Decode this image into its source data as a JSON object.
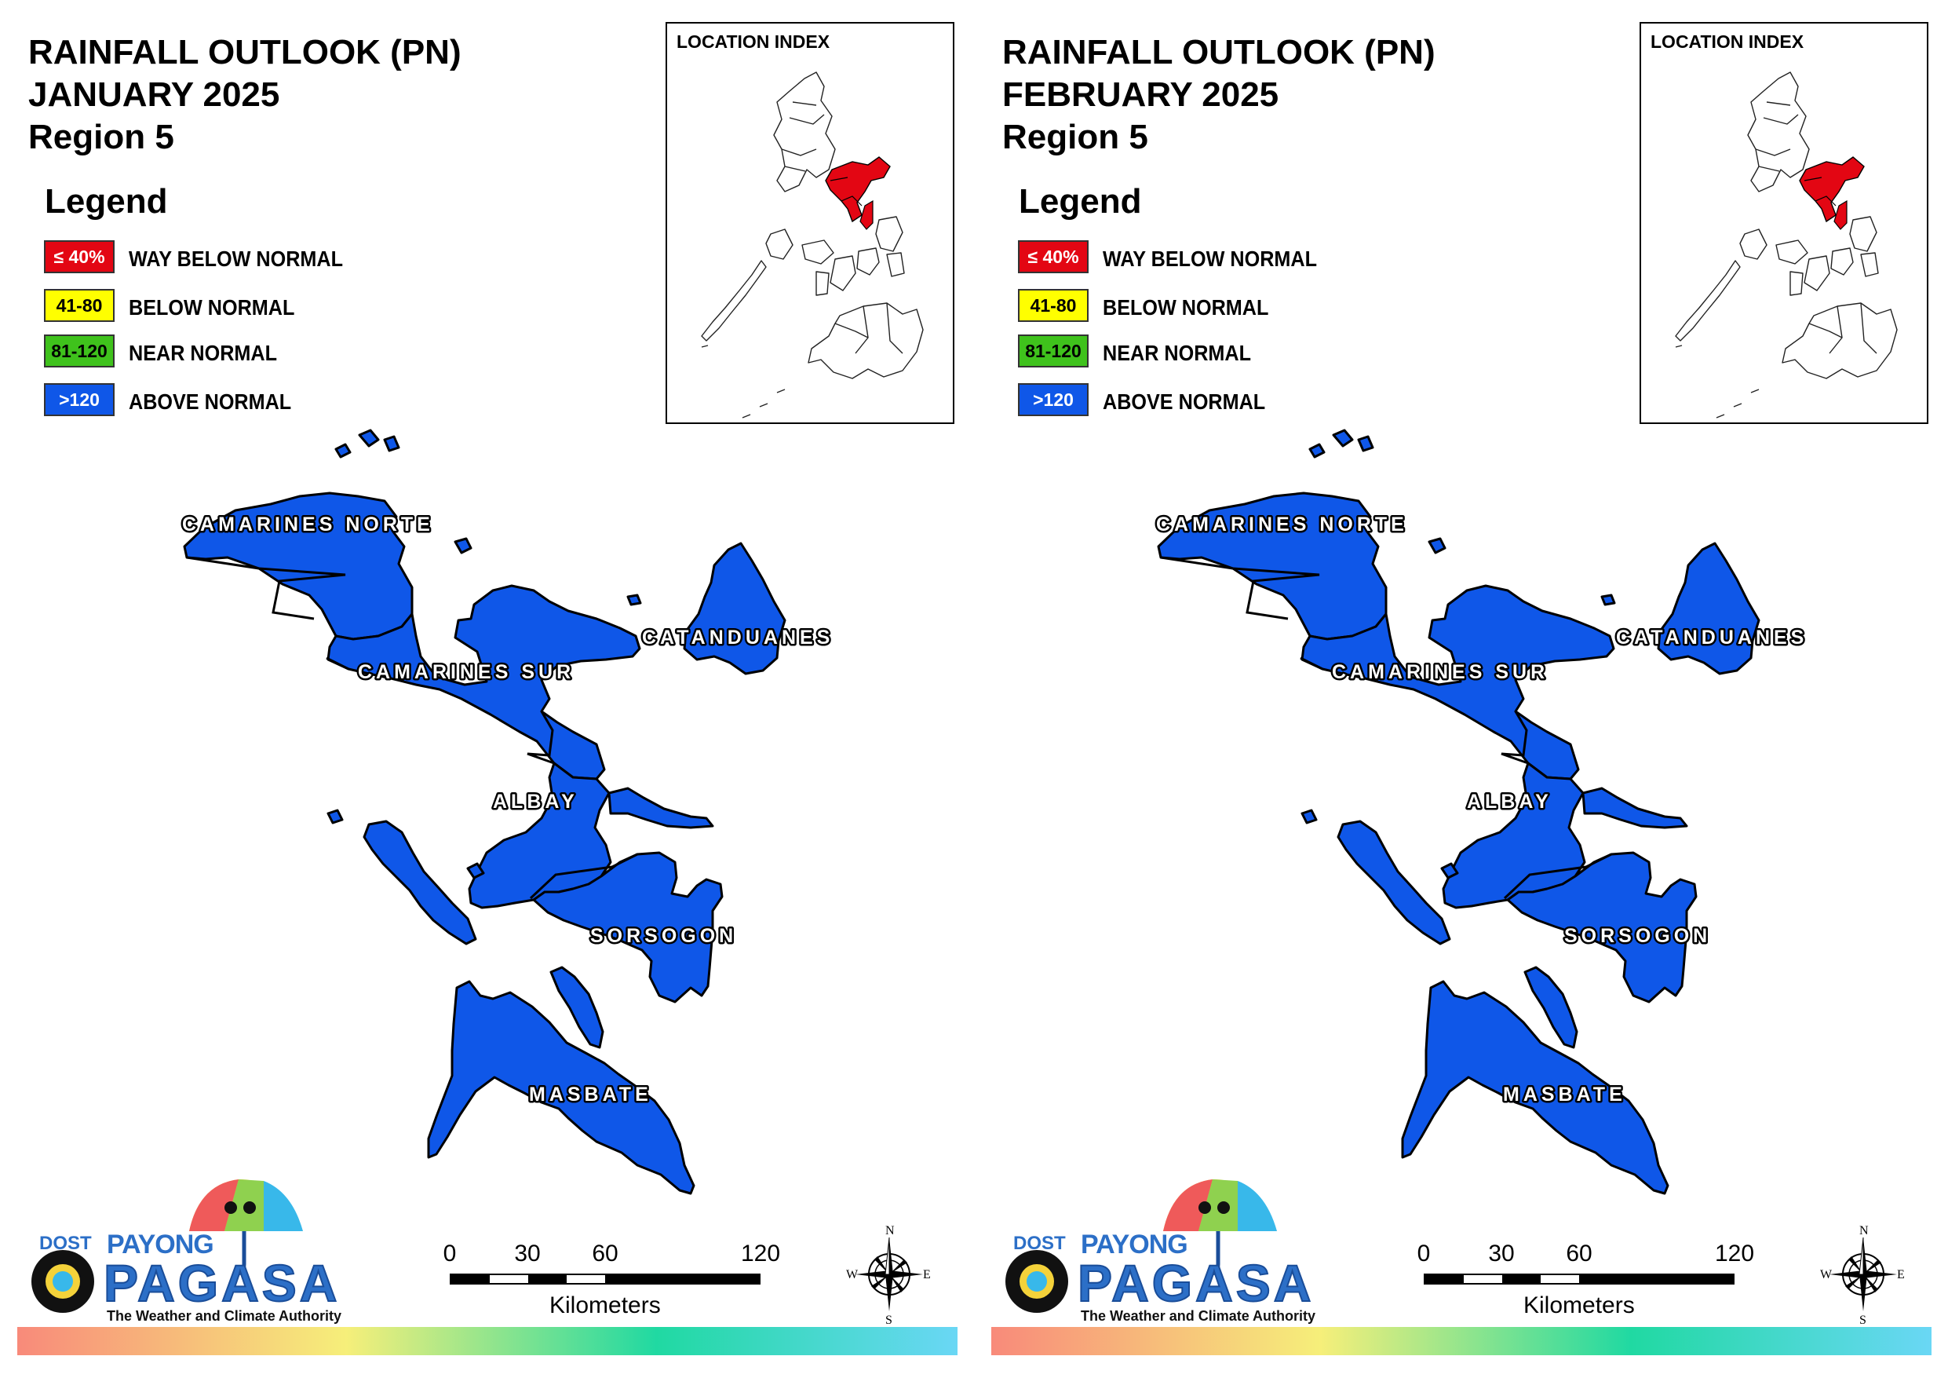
{
  "panels": [
    {
      "title_line1": "RAINFALL OUTLOOK (PN)",
      "title_line2": "JANUARY 2025",
      "title_line3": "Region 5"
    },
    {
      "title_line1": "RAINFALL OUTLOOK (PN)",
      "title_line2": "FEBRUARY 2025",
      "title_line3": "Region 5"
    }
  ],
  "legend": {
    "title": "Legend",
    "items": [
      {
        "range": "≤ 40%",
        "label": "WAY BELOW NORMAL",
        "color": "#e30613",
        "text_color": "#ffffff"
      },
      {
        "range": "41-80",
        "label": "BELOW NORMAL",
        "color": "#ffff00",
        "text_color": "#000000"
      },
      {
        "range": "81-120",
        "label": "NEAR NORMAL",
        "color": "#3fc21c",
        "text_color": "#000000"
      },
      {
        "range": ">120",
        "label": "ABOVE NORMAL",
        "color": "#0f57e8",
        "text_color": "#ffffff"
      }
    ]
  },
  "inset": {
    "title": "LOCATION INDEX",
    "highlight_color": "#e30613"
  },
  "provinces": [
    {
      "name": "CAMARINES NORTE",
      "outlook": "ABOVE NORMAL"
    },
    {
      "name": "CAMARINES SUR",
      "outlook": "ABOVE NORMAL"
    },
    {
      "name": "CATANDUANES",
      "outlook": "ABOVE NORMAL"
    },
    {
      "name": "ALBAY",
      "outlook": "ABOVE NORMAL"
    },
    {
      "name": "SORSOGON",
      "outlook": "ABOVE NORMAL"
    },
    {
      "name": "MASBATE",
      "outlook": "ABOVE NORMAL"
    }
  ],
  "province_fill": "#0f57e8",
  "scale": {
    "ticks": [
      "0",
      "30",
      "60",
      "120"
    ],
    "unit": "Kilometers"
  },
  "compass": {
    "n": "N",
    "e": "E",
    "s": "S",
    "w": "W"
  },
  "logo": {
    "dost": "DOST",
    "payong": "PAYONG",
    "pagasa": "PAGASA",
    "tagline": "The Weather and Climate Authority"
  }
}
